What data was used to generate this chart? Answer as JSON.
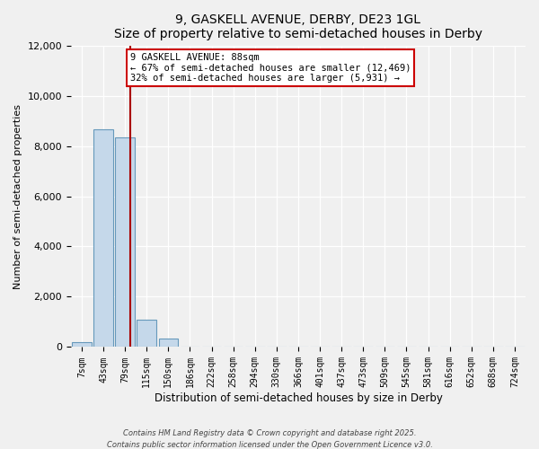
{
  "title": "9, GASKELL AVENUE, DERBY, DE23 1GL",
  "subtitle": "Size of property relative to semi-detached houses in Derby",
  "xlabel": "Distribution of semi-detached houses by size in Derby",
  "ylabel": "Number of semi-detached properties",
  "bar_labels": [
    "7sqm",
    "43sqm",
    "79sqm",
    "115sqm",
    "150sqm",
    "186sqm",
    "222sqm",
    "258sqm",
    "294sqm",
    "330sqm",
    "366sqm",
    "401sqm",
    "437sqm",
    "473sqm",
    "509sqm",
    "545sqm",
    "581sqm",
    "616sqm",
    "652sqm",
    "688sqm",
    "724sqm"
  ],
  "bar_values": [
    200,
    8650,
    8350,
    1100,
    330,
    30,
    0,
    0,
    0,
    0,
    0,
    0,
    0,
    0,
    0,
    0,
    0,
    0,
    0,
    0,
    0
  ],
  "bar_color": "#c5d8ea",
  "bar_edge_color": "#6699bb",
  "vline_color": "#aa0000",
  "annotation_title": "9 GASKELL AVENUE: 88sqm",
  "annotation_line1": "← 67% of semi-detached houses are smaller (12,469)",
  "annotation_line2": "32% of semi-detached houses are larger (5,931) →",
  "annotation_box_color": "#ffffff",
  "annotation_box_edge": "#cc0000",
  "ylim": [
    0,
    12000
  ],
  "yticks": [
    0,
    2000,
    4000,
    6000,
    8000,
    10000,
    12000
  ],
  "footer1": "Contains HM Land Registry data © Crown copyright and database right 2025.",
  "footer2": "Contains public sector information licensed under the Open Government Licence v3.0.",
  "bg_color": "#f0f0f0"
}
